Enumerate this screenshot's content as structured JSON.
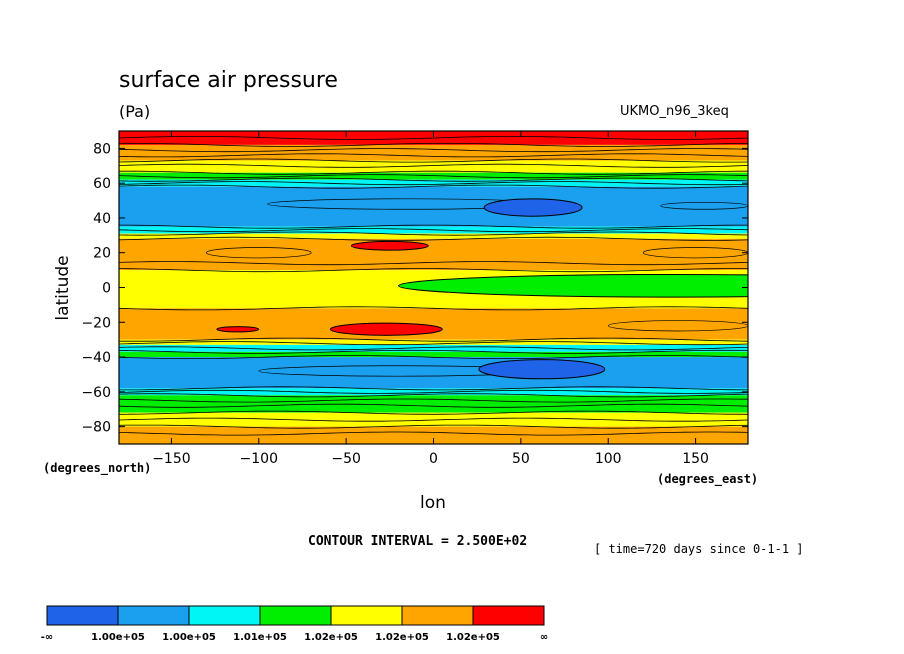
{
  "title": "surface air pressure",
  "units": "(Pa)",
  "model": "UKMO_n96_3keq",
  "contour_interval": "CONTOUR INTERVAL = 2.500E+02",
  "time_info": "[ time=720 days since 0-1-1 ]",
  "colors": {
    "blue": "#1f64e8",
    "lightblue": "#1aa0ee",
    "cyan": "#00f5f5",
    "green": "#00ee00",
    "yellow": "#ffff00",
    "orange": "#ffa500",
    "red": "#ff0000"
  },
  "chart_data": {
    "type": "heatmap",
    "title": "surface air pressure",
    "xlabel": "lon",
    "ylabel": "latitude",
    "x_units": "(degrees_east)",
    "y_units": "(degrees_north)",
    "xlim": [
      -180,
      180
    ],
    "ylim": [
      -90,
      90
    ],
    "x_ticks": [
      -150,
      -100,
      -50,
      0,
      50,
      100,
      150
    ],
    "y_ticks": [
      80,
      60,
      40,
      20,
      0,
      -20,
      -40,
      -60,
      -80
    ],
    "bands": [
      {
        "lat": [
          82,
          90
        ],
        "level": "red"
      },
      {
        "lat": [
          73,
          82
        ],
        "level": "orange"
      },
      {
        "lat": [
          66,
          73
        ],
        "level": "yellow"
      },
      {
        "lat": [
          62,
          66
        ],
        "level": "green"
      },
      {
        "lat": [
          58,
          62
        ],
        "level": "cyan"
      },
      {
        "lat": [
          35,
          58
        ],
        "level": "lightblue"
      },
      {
        "lat": [
          31,
          35
        ],
        "level": "cyan"
      },
      {
        "lat": [
          28,
          31
        ],
        "level": "yellow"
      },
      {
        "lat": [
          10,
          28
        ],
        "level": "orange"
      },
      {
        "lat": [
          -12,
          10
        ],
        "level": "yellow"
      },
      {
        "lat": [
          -30,
          -12
        ],
        "level": "orange"
      },
      {
        "lat": [
          -33,
          -30
        ],
        "level": "yellow"
      },
      {
        "lat": [
          -37,
          -33
        ],
        "level": "cyan"
      },
      {
        "lat": [
          -40,
          -37
        ],
        "level": "green"
      },
      {
        "lat": [
          -58,
          -40
        ],
        "level": "lightblue"
      },
      {
        "lat": [
          -62,
          -58
        ],
        "level": "cyan"
      },
      {
        "lat": [
          -72,
          -62
        ],
        "level": "green"
      },
      {
        "lat": [
          -80,
          -72
        ],
        "level": "yellow"
      },
      {
        "lat": [
          -90,
          -80
        ],
        "level": "orange"
      }
    ],
    "regions": [
      {
        "level": "blue",
        "lon": 57,
        "lat": 46,
        "lon_halfwidth": 28,
        "lat_halfwidth": 5
      },
      {
        "level": "blue",
        "lon": 62,
        "lat": -47,
        "lon_halfwidth": 36,
        "lat_halfwidth": 5.5
      },
      {
        "level": "red",
        "lon": -25,
        "lat": 24,
        "lon_halfwidth": 22,
        "lat_halfwidth": 2.5
      },
      {
        "level": "red",
        "lon": -27,
        "lat": -24,
        "lon_halfwidth": 32,
        "lat_halfwidth": 3.5
      },
      {
        "level": "red",
        "lon": -112,
        "lat": -24,
        "lon_halfwidth": 12,
        "lat_halfwidth": 1.5
      },
      {
        "level": "green",
        "lon": 135,
        "lat": 1,
        "lon_halfwidth": 155,
        "lat_halfwidth": 6.5
      }
    ],
    "contour_lats": [
      86,
      82,
      79,
      76,
      73,
      70,
      66,
      64,
      62,
      60,
      58,
      35,
      33,
      31,
      28,
      14,
      10,
      -12,
      -30,
      -32,
      -35,
      -37,
      -40,
      -58,
      -60,
      -62,
      -65,
      -68,
      -72,
      -76,
      -80,
      -84
    ],
    "legend": {
      "levels": [
        "blue",
        "lightblue",
        "cyan",
        "green",
        "yellow",
        "orange",
        "red"
      ],
      "labels": [
        "-∞",
        "1.00e+05",
        "1.00e+05",
        "1.01e+05",
        "1.02e+05",
        "1.02e+05",
        "1.02e+05",
        "∞"
      ]
    }
  }
}
